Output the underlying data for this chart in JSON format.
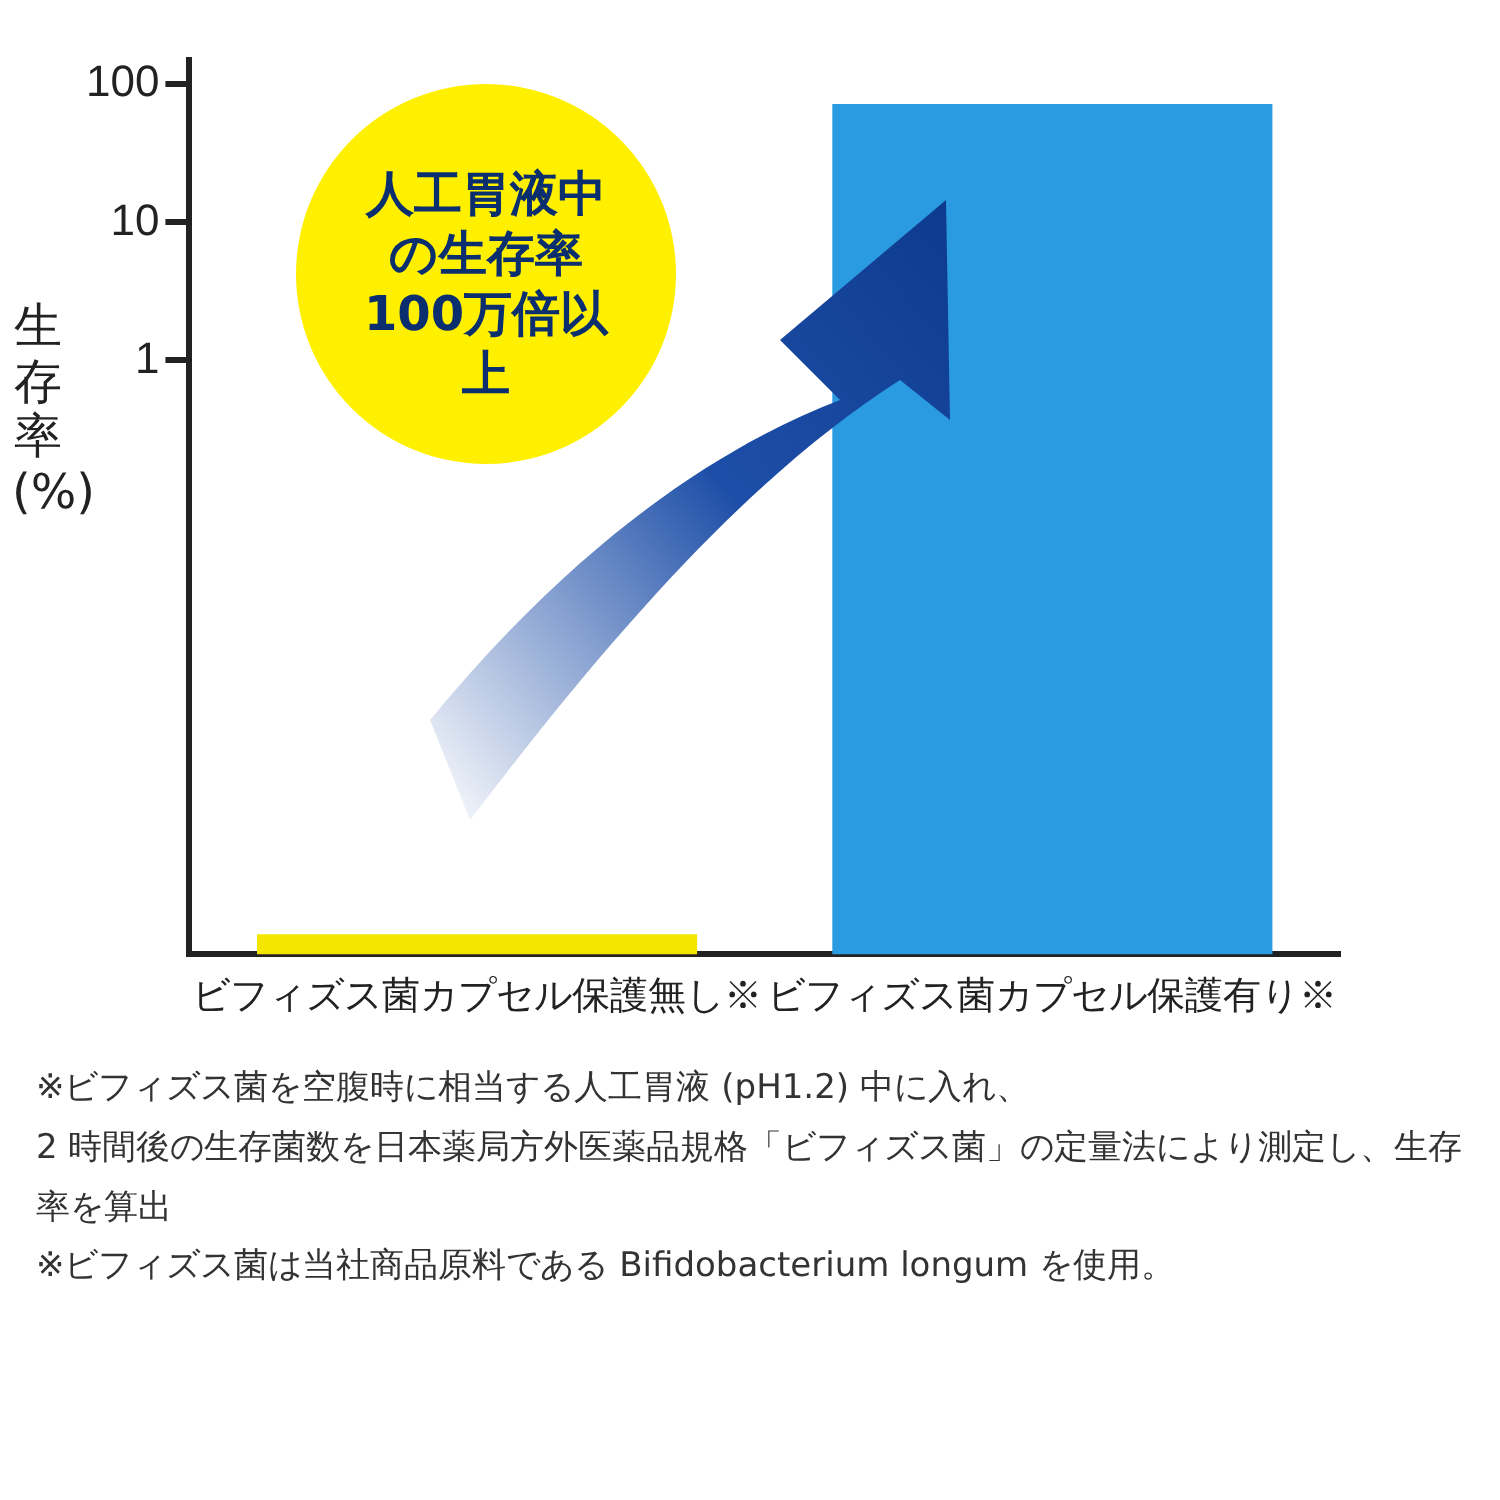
{
  "chart_data": {
    "type": "bar",
    "ylabel": "生存率(%)",
    "categories": [
      "ビフィズス菌カプセル保護無し※",
      "ビフィズス菌カプセル保護有り※"
    ],
    "values": [
      7e-05,
      72
    ],
    "colors": [
      "#f5e600",
      "#2a9be0"
    ],
    "log": true,
    "ylim": [
      5e-05,
      150
    ],
    "yticks": [
      1,
      10,
      100
    ],
    "grid": false,
    "legend": false,
    "annotations": [
      "人工胃液中の生存率100万倍以上",
      "※ビフィズス菌を空腹時に相当する人工胃液 (pH1.2) 中に入れ、\n2 時間後の生存菌数を日本薬局方外医薬品規格「ビフィズス菌」の定量法により測定し、生存率を算出",
      "※ビフィズス菌は当社商品原料である Bifidobacterium longum を使用。"
    ]
  }
}
